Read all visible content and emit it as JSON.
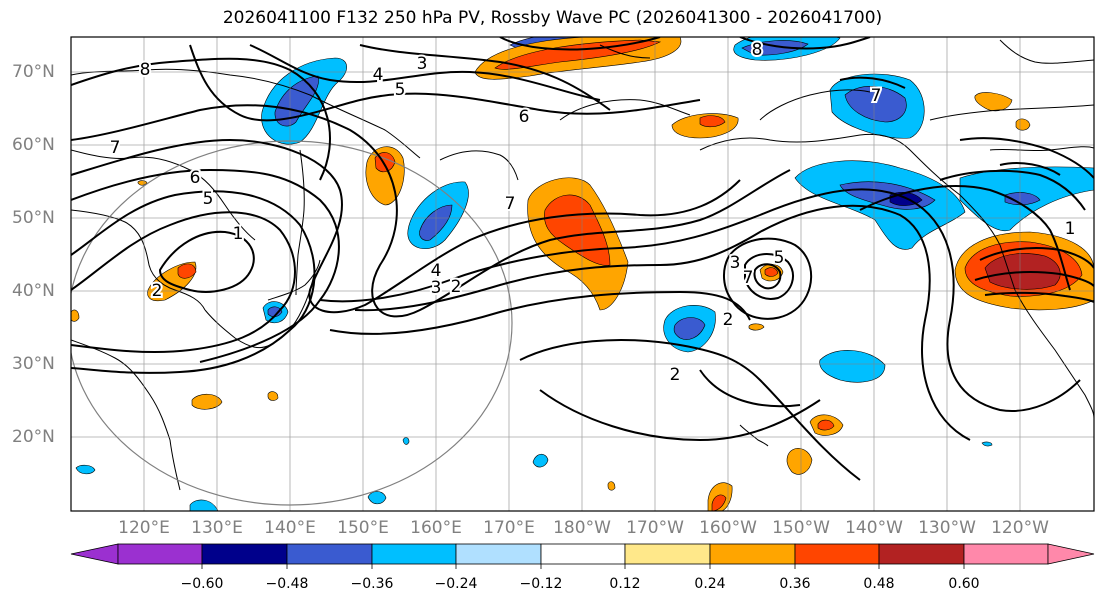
{
  "title": "2026041100 F132 250 hPa PV, Rossby Wave PC (2026041300 - 2026041700)",
  "latitude_labels": [
    "70°N",
    "60°N",
    "50°N",
    "40°N",
    "30°N",
    "20°N"
  ],
  "longitude_labels": [
    "120°E",
    "130°E",
    "140°E",
    "150°E",
    "160°E",
    "170°E",
    "180°W",
    "170°W",
    "160°W",
    "150°W",
    "140°W",
    "130°W",
    "120°W"
  ],
  "colorbar": {
    "ticks": [
      "−0.60",
      "−0.48",
      "−0.36",
      "−0.24",
      "−0.12",
      "0.12",
      "0.24",
      "0.36",
      "0.48",
      "0.60"
    ],
    "colors": [
      "#9b30d0",
      "#00008b",
      "#3a5bd0",
      "#00bfff",
      "#b0e0ff",
      "#ffffff",
      "#ffe88a",
      "#ffa500",
      "#ff4500",
      "#b22222",
      "#ff88aa"
    ]
  },
  "contour_labels": [
    "3",
    "4",
    "5",
    "6",
    "7",
    "8",
    "7",
    "6",
    "5",
    "1",
    "2",
    "3",
    "4",
    "2",
    "7",
    "5",
    "2",
    "2",
    "3",
    "7",
    "8",
    "1"
  ],
  "map": {
    "projection": "cylindrical",
    "lat_range": [
      "10°N",
      "75°N"
    ],
    "lon_range": [
      "110°E",
      "110°W"
    ]
  }
}
